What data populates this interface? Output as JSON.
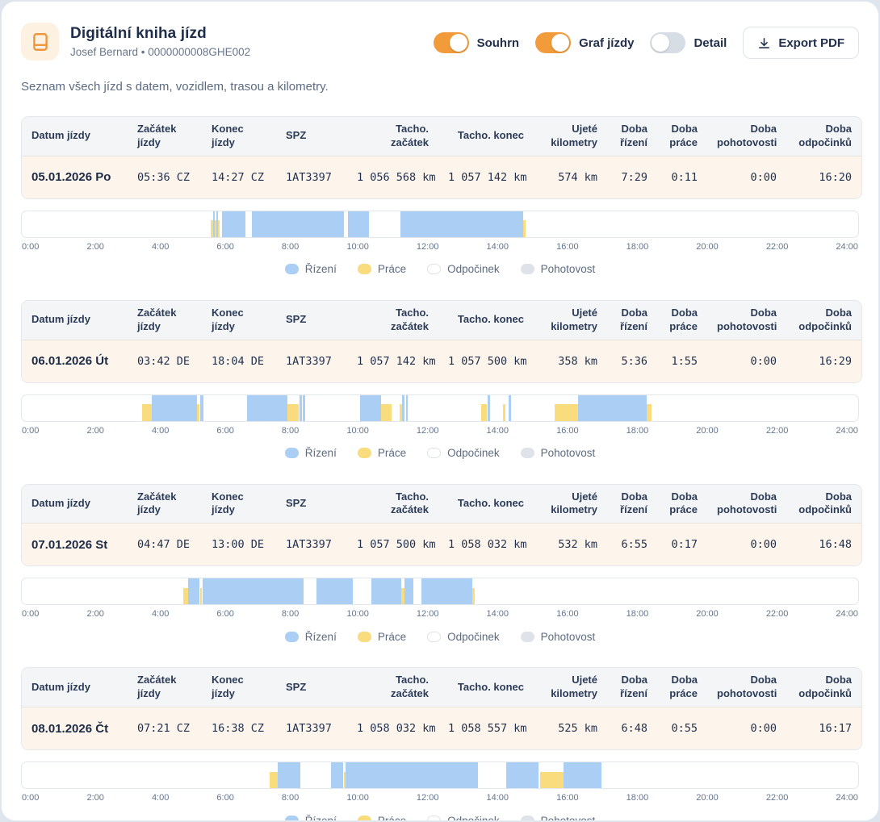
{
  "header": {
    "title": "Digitální kniha jízd",
    "subtitle": "Josef Bernard • 0000000008GHE002",
    "toggles": [
      {
        "label": "Souhrn",
        "on": true
      },
      {
        "label": "Graf jízdy",
        "on": true
      },
      {
        "label": "Detail",
        "on": false
      }
    ],
    "export_label": "Export PDF"
  },
  "description": "Seznam všech jízd s datem, vozidlem, trasou a kilometry.",
  "table": {
    "columns": [
      "Datum jízdy",
      "Začátek jízdy",
      "Konec jízdy",
      "SPZ",
      "Tacho. začátek",
      "Tacho. konec",
      "Ujeté kilometry",
      "Doba řízení",
      "Doba práce",
      "Doba pohotovosti",
      "Doba odpočinků"
    ],
    "aligns": [
      "left",
      "left",
      "left",
      "left",
      "right",
      "right",
      "right",
      "right",
      "right",
      "right",
      "right"
    ]
  },
  "chart": {
    "axis_labels": [
      "0:00",
      "2:00",
      "4:00",
      "6:00",
      "8:00",
      "10:00",
      "12:00",
      "14:00",
      "16:00",
      "18:00",
      "20:00",
      "22:00",
      "24:00"
    ],
    "axis_hours": [
      0,
      24
    ],
    "colors": {
      "driving": "#abcef5",
      "work": "#f8dc7e",
      "rest": "#ffffff",
      "standby": "#dfe3e9"
    },
    "legend": [
      {
        "label": "Řízení",
        "icon": "driving-swatch-icon",
        "color": "#abcef5"
      },
      {
        "label": "Práce",
        "icon": "work-swatch-icon",
        "color": "#f8dc7e"
      },
      {
        "label": "Odpočinek",
        "icon": "rest-swatch-icon",
        "color": "#ffffff",
        "border": "#dfe3e9"
      },
      {
        "label": "Pohotovost",
        "icon": "standby-swatch-icon",
        "color": "#dfe3e9"
      }
    ]
  },
  "chart_data": {
    "note": "per-day activity timelines, hours 0-24, see days[].segments"
  },
  "days": [
    {
      "cells": [
        "05.01.2026 Po",
        "05:36 CZ",
        "14:27 CZ",
        "1AT3397",
        "1 056 568 km",
        "1 057 142 km",
        "574 km",
        "7:29",
        "0:11",
        "0:00",
        "16:20"
      ],
      "segments": [
        {
          "type": "work",
          "start": 5.42,
          "end": 5.5
        },
        {
          "type": "driving",
          "start": 5.5,
          "end": 5.54
        },
        {
          "type": "work",
          "start": 5.54,
          "end": 5.58
        },
        {
          "type": "driving",
          "start": 5.58,
          "end": 5.62
        },
        {
          "type": "work",
          "start": 5.62,
          "end": 5.67
        },
        {
          "type": "driving",
          "start": 5.75,
          "end": 6.42
        },
        {
          "type": "driving",
          "start": 6.6,
          "end": 9.25
        },
        {
          "type": "driving",
          "start": 9.35,
          "end": 9.97
        },
        {
          "type": "driving",
          "start": 10.87,
          "end": 14.38
        },
        {
          "type": "work",
          "start": 14.38,
          "end": 14.45
        }
      ]
    },
    {
      "cells": [
        "06.01.2026 Út",
        "03:42 DE",
        "18:04 DE",
        "1AT3397",
        "1 057 142 km",
        "1 057 500 km",
        "358 km",
        "5:36",
        "1:55",
        "0:00",
        "16:29"
      ],
      "segments": [
        {
          "type": "work",
          "start": 3.45,
          "end": 3.72
        },
        {
          "type": "driving",
          "start": 3.72,
          "end": 5.03
        },
        {
          "type": "work",
          "start": 5.03,
          "end": 5.1
        },
        {
          "type": "driving",
          "start": 5.12,
          "end": 5.22
        },
        {
          "type": "driving",
          "start": 6.47,
          "end": 7.62
        },
        {
          "type": "work",
          "start": 7.62,
          "end": 7.95
        },
        {
          "type": "driving",
          "start": 7.97,
          "end": 8.03
        },
        {
          "type": "driving",
          "start": 8.07,
          "end": 8.13
        },
        {
          "type": "driving",
          "start": 9.7,
          "end": 10.32
        },
        {
          "type": "work",
          "start": 10.32,
          "end": 10.62
        },
        {
          "type": "work",
          "start": 10.85,
          "end": 10.92
        },
        {
          "type": "driving",
          "start": 10.92,
          "end": 10.98
        },
        {
          "type": "driving",
          "start": 11.02,
          "end": 11.08
        },
        {
          "type": "work",
          "start": 13.18,
          "end": 13.35
        },
        {
          "type": "driving",
          "start": 13.37,
          "end": 13.43
        },
        {
          "type": "work",
          "start": 13.8,
          "end": 13.87
        },
        {
          "type": "driving",
          "start": 13.97,
          "end": 14.03
        },
        {
          "type": "work",
          "start": 15.28,
          "end": 15.97
        },
        {
          "type": "driving",
          "start": 15.97,
          "end": 17.93
        },
        {
          "type": "work",
          "start": 17.93,
          "end": 18.07
        }
      ]
    },
    {
      "cells": [
        "07.01.2026 St",
        "04:47 DE",
        "13:00 DE",
        "1AT3397",
        "1 057 500 km",
        "1 058 032 km",
        "532 km",
        "6:55",
        "0:17",
        "0:00",
        "16:48"
      ],
      "segments": [
        {
          "type": "work",
          "start": 4.64,
          "end": 4.78
        },
        {
          "type": "driving",
          "start": 4.78,
          "end": 5.1
        },
        {
          "type": "work",
          "start": 5.12,
          "end": 5.17
        },
        {
          "type": "driving",
          "start": 5.2,
          "end": 8.08
        },
        {
          "type": "driving",
          "start": 8.46,
          "end": 9.5
        },
        {
          "type": "driving",
          "start": 10.04,
          "end": 10.89
        },
        {
          "type": "work",
          "start": 10.89,
          "end": 10.97
        },
        {
          "type": "driving",
          "start": 10.97,
          "end": 11.23
        },
        {
          "type": "driving",
          "start": 11.46,
          "end": 12.92
        },
        {
          "type": "work",
          "start": 12.92,
          "end": 13.0
        }
      ]
    },
    {
      "cells": [
        "08.01.2026 Čt",
        "07:21 CZ",
        "16:38 CZ",
        "1AT3397",
        "1 058 032 km",
        "1 058 557 km",
        "525 km",
        "6:48",
        "0:55",
        "0:00",
        "16:17"
      ],
      "segments": [
        {
          "type": "work",
          "start": 7.12,
          "end": 7.35
        },
        {
          "type": "driving",
          "start": 7.35,
          "end": 8.0
        },
        {
          "type": "driving",
          "start": 8.87,
          "end": 9.22
        },
        {
          "type": "work",
          "start": 9.24,
          "end": 9.29
        },
        {
          "type": "driving",
          "start": 9.29,
          "end": 13.08
        },
        {
          "type": "driving",
          "start": 13.89,
          "end": 14.82
        },
        {
          "type": "work",
          "start": 14.87,
          "end": 15.55
        },
        {
          "type": "driving",
          "start": 15.55,
          "end": 16.63
        }
      ]
    }
  ]
}
